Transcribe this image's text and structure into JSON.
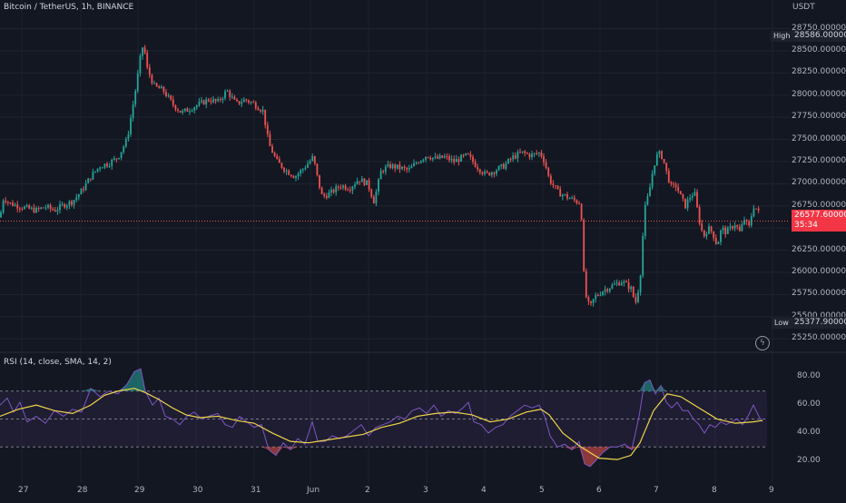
{
  "header": {
    "symbol_title": "Bitcoin / TetherUS, 1h, BINANCE",
    "currency": "USDT"
  },
  "price_axis": {
    "labels": [
      "28750.000000",
      "28500.000000",
      "28250.000000",
      "28000.000000",
      "27750.000000",
      "27500.000000",
      "27250.000000",
      "27000.000000",
      "26750.000000",
      "26500.000000",
      "26250.000000",
      "26000.000000",
      "25750.000000",
      "25500.000000",
      "25250.000000"
    ]
  },
  "high_marker": {
    "label": "High",
    "value": "28586.000000"
  },
  "low_marker": {
    "label": "Low",
    "value": "25377.900000"
  },
  "last_price": {
    "value": "26577.600000",
    "countdown": "35:34"
  },
  "rsi": {
    "title": "RSI (14, close, SMA, 14, 2)",
    "axis_labels": [
      "80.00",
      "60.00",
      "40.00",
      "20.00"
    ],
    "band_upper": 70,
    "band_mid": 50,
    "band_lower": 30
  },
  "time_axis": {
    "labels": [
      "27",
      "28",
      "29",
      "30",
      "31",
      "Jun",
      "2",
      "3",
      "4",
      "5",
      "6",
      "7",
      "8",
      "9"
    ]
  },
  "colors": {
    "up": "#26a69a",
    "down": "#ef5350",
    "rsi_line": "#7e57c2",
    "rsi_sma": "#f2d64b",
    "background": "#131722"
  },
  "chart_data": {
    "type": "candlestick",
    "ylim": [
      25200,
      28950
    ],
    "rsi_ylim": [
      12,
      90
    ],
    "x": [
      "27",
      "28",
      "29",
      "30",
      "31",
      "Jun",
      "2",
      "3",
      "4",
      "5",
      "6",
      "7",
      "8",
      "9"
    ],
    "price_path": [
      [
        0,
        26620
      ],
      [
        4,
        26850
      ],
      [
        10,
        26780
      ],
      [
        20,
        26750
      ],
      [
        30,
        26720
      ],
      [
        40,
        26700
      ],
      [
        50,
        26740
      ],
      [
        60,
        26700
      ],
      [
        70,
        26760
      ],
      [
        80,
        26800
      ],
      [
        90,
        26920
      ],
      [
        100,
        27080
      ],
      [
        110,
        27200
      ],
      [
        120,
        27230
      ],
      [
        130,
        27300
      ],
      [
        140,
        27500
      ],
      [
        150,
        28100
      ],
      [
        155,
        28450
      ],
      [
        158,
        28586
      ],
      [
        162,
        28300
      ],
      [
        170,
        28100
      ],
      [
        180,
        28050
      ],
      [
        190,
        27900
      ],
      [
        200,
        27800
      ],
      [
        210,
        27850
      ],
      [
        220,
        27900
      ],
      [
        230,
        27950
      ],
      [
        240,
        27920
      ],
      [
        250,
        28050
      ],
      [
        260,
        27900
      ],
      [
        270,
        27950
      ],
      [
        280,
        27900
      ],
      [
        290,
        27820
      ],
      [
        296,
        27450
      ],
      [
        305,
        27250
      ],
      [
        315,
        27150
      ],
      [
        325,
        27080
      ],
      [
        335,
        27180
      ],
      [
        345,
        27300
      ],
      [
        350,
        27050
      ],
      [
        355,
        26850
      ],
      [
        365,
        26900
      ],
      [
        375,
        26980
      ],
      [
        385,
        26950
      ],
      [
        395,
        27050
      ],
      [
        405,
        27000
      ],
      [
        412,
        26800
      ],
      [
        420,
        27150
      ],
      [
        430,
        27200
      ],
      [
        440,
        27180
      ],
      [
        450,
        27150
      ],
      [
        460,
        27250
      ],
      [
        470,
        27320
      ],
      [
        480,
        27280
      ],
      [
        490,
        27300
      ],
      [
        500,
        27250
      ],
      [
        510,
        27300
      ],
      [
        515,
        27320
      ],
      [
        525,
        27200
      ],
      [
        535,
        27100
      ],
      [
        545,
        27150
      ],
      [
        555,
        27200
      ],
      [
        565,
        27300
      ],
      [
        575,
        27350
      ],
      [
        585,
        27320
      ],
      [
        595,
        27350
      ],
      [
        600,
        27250
      ],
      [
        605,
        27050
      ],
      [
        615,
        26900
      ],
      [
        625,
        26850
      ],
      [
        635,
        26800
      ],
      [
        640,
        26780
      ],
      [
        643,
        26000
      ],
      [
        646,
        25700
      ],
      [
        650,
        25600
      ],
      [
        655,
        25720
      ],
      [
        665,
        25800
      ],
      [
        675,
        25850
      ],
      [
        685,
        25900
      ],
      [
        695,
        25820
      ],
      [
        700,
        25650
      ],
      [
        705,
        25900
      ],
      [
        710,
        26700
      ],
      [
        715,
        26900
      ],
      [
        720,
        27200
      ],
      [
        725,
        27350
      ],
      [
        730,
        27300
      ],
      [
        735,
        27100
      ],
      [
        740,
        26950
      ],
      [
        745,
        26980
      ],
      [
        750,
        26850
      ],
      [
        755,
        26750
      ],
      [
        760,
        26850
      ],
      [
        765,
        26900
      ],
      [
        770,
        26600
      ],
      [
        775,
        26400
      ],
      [
        780,
        26500
      ],
      [
        785,
        26450
      ],
      [
        790,
        26300
      ],
      [
        795,
        26500
      ],
      [
        800,
        26450
      ],
      [
        805,
        26500
      ],
      [
        810,
        26550
      ],
      [
        815,
        26450
      ],
      [
        820,
        26600
      ],
      [
        825,
        26500
      ],
      [
        830,
        26750
      ],
      [
        835,
        26700
      ],
      [
        838,
        26577
      ]
    ],
    "rsi_path": [
      [
        0,
        60
      ],
      [
        8,
        65
      ],
      [
        15,
        55
      ],
      [
        22,
        62
      ],
      [
        30,
        48
      ],
      [
        40,
        52
      ],
      [
        50,
        47
      ],
      [
        60,
        56
      ],
      [
        70,
        52
      ],
      [
        80,
        57
      ],
      [
        90,
        55
      ],
      [
        100,
        72
      ],
      [
        110,
        66
      ],
      [
        120,
        70
      ],
      [
        130,
        68
      ],
      [
        140,
        75
      ],
      [
        148,
        84
      ],
      [
        155,
        86
      ],
      [
        160,
        70
      ],
      [
        168,
        60
      ],
      [
        175,
        65
      ],
      [
        182,
        52
      ],
      [
        190,
        50
      ],
      [
        198,
        46
      ],
      [
        206,
        52
      ],
      [
        214,
        55
      ],
      [
        222,
        50
      ],
      [
        230,
        52
      ],
      [
        240,
        54
      ],
      [
        248,
        46
      ],
      [
        256,
        44
      ],
      [
        264,
        52
      ],
      [
        272,
        48
      ],
      [
        280,
        44
      ],
      [
        288,
        46
      ],
      [
        296,
        28
      ],
      [
        304,
        24
      ],
      [
        312,
        33
      ],
      [
        320,
        28
      ],
      [
        328,
        36
      ],
      [
        336,
        32
      ],
      [
        344,
        48
      ],
      [
        350,
        34
      ],
      [
        358,
        34
      ],
      [
        366,
        38
      ],
      [
        374,
        36
      ],
      [
        382,
        38
      ],
      [
        390,
        42
      ],
      [
        398,
        46
      ],
      [
        406,
        38
      ],
      [
        414,
        44
      ],
      [
        422,
        46
      ],
      [
        430,
        48
      ],
      [
        438,
        52
      ],
      [
        446,
        50
      ],
      [
        454,
        56
      ],
      [
        462,
        58
      ],
      [
        470,
        54
      ],
      [
        478,
        60
      ],
      [
        486,
        52
      ],
      [
        494,
        56
      ],
      [
        502,
        54
      ],
      [
        510,
        58
      ],
      [
        516,
        62
      ],
      [
        522,
        48
      ],
      [
        530,
        46
      ],
      [
        538,
        40
      ],
      [
        546,
        44
      ],
      [
        554,
        46
      ],
      [
        562,
        52
      ],
      [
        570,
        56
      ],
      [
        578,
        60
      ],
      [
        586,
        58
      ],
      [
        594,
        60
      ],
      [
        600,
        52
      ],
      [
        606,
        38
      ],
      [
        614,
        30
      ],
      [
        622,
        32
      ],
      [
        630,
        28
      ],
      [
        638,
        34
      ],
      [
        644,
        18
      ],
      [
        650,
        16
      ],
      [
        656,
        20
      ],
      [
        664,
        26
      ],
      [
        672,
        30
      ],
      [
        680,
        30
      ],
      [
        688,
        32
      ],
      [
        696,
        28
      ],
      [
        704,
        52
      ],
      [
        710,
        76
      ],
      [
        716,
        78
      ],
      [
        722,
        68
      ],
      [
        728,
        74
      ],
      [
        734,
        62
      ],
      [
        740,
        58
      ],
      [
        746,
        62
      ],
      [
        752,
        56
      ],
      [
        758,
        56
      ],
      [
        764,
        50
      ],
      [
        770,
        46
      ],
      [
        776,
        40
      ],
      [
        782,
        46
      ],
      [
        788,
        44
      ],
      [
        794,
        48
      ],
      [
        800,
        46
      ],
      [
        806,
        48
      ],
      [
        812,
        50
      ],
      [
        818,
        46
      ],
      [
        824,
        52
      ],
      [
        830,
        60
      ],
      [
        836,
        52
      ],
      [
        840,
        48
      ]
    ],
    "rsi_sma_path": [
      [
        0,
        52
      ],
      [
        20,
        57
      ],
      [
        40,
        60
      ],
      [
        60,
        56
      ],
      [
        80,
        54
      ],
      [
        100,
        60
      ],
      [
        115,
        67
      ],
      [
        130,
        70
      ],
      [
        148,
        72
      ],
      [
        160,
        69
      ],
      [
        175,
        64
      ],
      [
        190,
        58
      ],
      [
        205,
        53
      ],
      [
        220,
        51
      ],
      [
        240,
        52
      ],
      [
        260,
        49
      ],
      [
        280,
        47
      ],
      [
        300,
        40
      ],
      [
        320,
        34
      ],
      [
        340,
        33
      ],
      [
        360,
        35
      ],
      [
        380,
        37
      ],
      [
        400,
        39
      ],
      [
        420,
        44
      ],
      [
        440,
        47
      ],
      [
        460,
        52
      ],
      [
        480,
        54
      ],
      [
        500,
        55
      ],
      [
        520,
        53
      ],
      [
        540,
        48
      ],
      [
        560,
        50
      ],
      [
        580,
        55
      ],
      [
        596,
        57
      ],
      [
        605,
        53
      ],
      [
        620,
        40
      ],
      [
        640,
        30
      ],
      [
        660,
        22
      ],
      [
        680,
        21
      ],
      [
        695,
        24
      ],
      [
        705,
        33
      ],
      [
        720,
        56
      ],
      [
        735,
        68
      ],
      [
        750,
        66
      ],
      [
        770,
        58
      ],
      [
        790,
        50
      ],
      [
        810,
        47
      ],
      [
        830,
        48
      ],
      [
        840,
        49
      ]
    ]
  }
}
